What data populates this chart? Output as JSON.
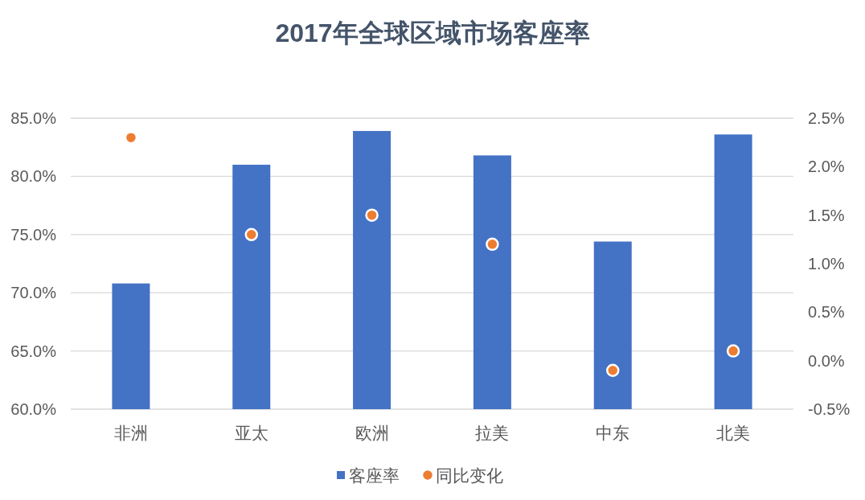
{
  "chart_data": {
    "type": "bar",
    "title": "2017年全球区域市场客座率",
    "categories": [
      "非洲",
      "亚太",
      "欧洲",
      "拉美",
      "中东",
      "北美"
    ],
    "series": [
      {
        "name": "客座率",
        "color": "#4472c4",
        "values": [
          70.8,
          81.0,
          83.9,
          81.8,
          74.4,
          83.6
        ]
      },
      {
        "name": "同比变化",
        "type": "scatter",
        "axis": "y2",
        "color": "#ed7d31",
        "marker": "circle",
        "values": [
          2.3,
          1.3,
          1.5,
          1.2,
          -0.1,
          0.1
        ]
      }
    ],
    "ylim": [
      60,
      85
    ],
    "yticks": [
      {
        "value": 60,
        "label": "60.0%"
      },
      {
        "value": 65,
        "label": "65.0%"
      },
      {
        "value": 70,
        "label": "70.0%"
      },
      {
        "value": 75,
        "label": "75.0%"
      },
      {
        "value": 80,
        "label": "80.0%"
      },
      {
        "value": 85,
        "label": "85.0%"
      }
    ],
    "y2lim": [
      -0.5,
      2.5
    ],
    "y2ticks": [
      {
        "value": -0.5,
        "label": "-0.5%"
      },
      {
        "value": 0,
        "label": "0.0%"
      },
      {
        "value": 0.5,
        "label": "0.5%"
      },
      {
        "value": 1,
        "label": "1.0%"
      },
      {
        "value": 1.5,
        "label": "1.5%"
      },
      {
        "value": 2,
        "label": "2.0%"
      },
      {
        "value": 2.5,
        "label": "2.5%"
      }
    ],
    "grid": "y",
    "legend": "bottom"
  }
}
